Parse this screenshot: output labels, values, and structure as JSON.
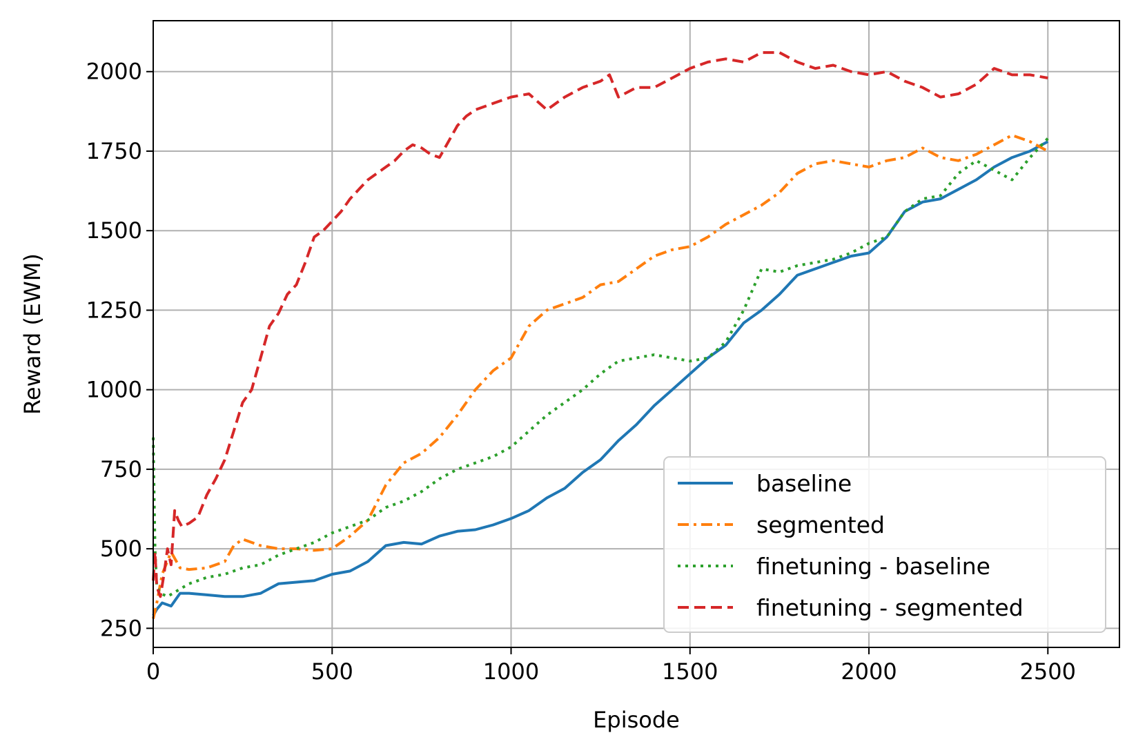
{
  "chart_data": {
    "type": "line",
    "title": "",
    "xlabel": "Episode",
    "ylabel": "Reward (EWM)",
    "xlim": [
      0,
      2700
    ],
    "ylim": [
      190,
      2160
    ],
    "xticks": [
      0,
      500,
      1000,
      1500,
      2000,
      2500
    ],
    "yticks": [
      250,
      500,
      750,
      1000,
      1250,
      1500,
      1750,
      2000
    ],
    "grid": true,
    "legend_position": "lower-right",
    "series": [
      {
        "name": "baseline",
        "color": "#1f77b4",
        "dash": "solid",
        "x": [
          0,
          10,
          25,
          50,
          75,
          100,
          150,
          200,
          250,
          300,
          350,
          400,
          450,
          500,
          550,
          600,
          650,
          700,
          750,
          800,
          850,
          900,
          950,
          1000,
          1050,
          1100,
          1150,
          1200,
          1250,
          1300,
          1350,
          1400,
          1450,
          1500,
          1550,
          1600,
          1650,
          1700,
          1750,
          1800,
          1850,
          1900,
          1950,
          2000,
          2050,
          2100,
          2150,
          2200,
          2250,
          2300,
          2350,
          2400,
          2450,
          2500
        ],
        "y": [
          290,
          310,
          330,
          320,
          360,
          360,
          355,
          350,
          350,
          360,
          390,
          395,
          400,
          420,
          430,
          460,
          510,
          520,
          515,
          540,
          555,
          560,
          575,
          595,
          620,
          660,
          690,
          740,
          780,
          840,
          890,
          950,
          1000,
          1050,
          1100,
          1140,
          1210,
          1250,
          1300,
          1360,
          1380,
          1400,
          1420,
          1430,
          1480,
          1560,
          1590,
          1600,
          1630,
          1660,
          1700,
          1730,
          1750,
          1780
        ]
      },
      {
        "name": "segmented",
        "color": "#ff7f0e",
        "dash": "dashdot",
        "x": [
          0,
          10,
          25,
          50,
          75,
          100,
          150,
          200,
          225,
          250,
          300,
          350,
          400,
          450,
          500,
          550,
          600,
          650,
          700,
          750,
          800,
          850,
          900,
          950,
          1000,
          1050,
          1100,
          1150,
          1200,
          1250,
          1300,
          1350,
          1400,
          1450,
          1500,
          1550,
          1600,
          1650,
          1700,
          1750,
          1800,
          1850,
          1900,
          1950,
          2000,
          2050,
          2100,
          2150,
          2200,
          2250,
          2300,
          2350,
          2400,
          2450,
          2500
        ],
        "y": [
          280,
          330,
          420,
          490,
          440,
          435,
          440,
          460,
          510,
          530,
          510,
          500,
          500,
          495,
          500,
          540,
          590,
          700,
          770,
          800,
          850,
          920,
          1000,
          1060,
          1100,
          1200,
          1250,
          1270,
          1290,
          1330,
          1340,
          1380,
          1420,
          1440,
          1450,
          1480,
          1520,
          1550,
          1580,
          1620,
          1680,
          1710,
          1720,
          1710,
          1700,
          1720,
          1730,
          1760,
          1730,
          1720,
          1740,
          1770,
          1800,
          1780,
          1750
        ]
      },
      {
        "name": "finetuning - baseline",
        "color": "#2ca02c",
        "dash": "dotted",
        "x": [
          0,
          5,
          10,
          20,
          40,
          70,
          100,
          150,
          200,
          250,
          300,
          350,
          400,
          450,
          500,
          550,
          600,
          650,
          700,
          750,
          800,
          850,
          900,
          950,
          1000,
          1050,
          1100,
          1150,
          1200,
          1250,
          1300,
          1350,
          1400,
          1450,
          1500,
          1550,
          1600,
          1650,
          1700,
          1750,
          1800,
          1850,
          1900,
          1950,
          2000,
          2050,
          2100,
          2150,
          2200,
          2250,
          2300,
          2350,
          2400,
          2450,
          2500
        ],
        "y": [
          850,
          500,
          380,
          360,
          350,
          370,
          390,
          410,
          420,
          440,
          450,
          480,
          500,
          520,
          550,
          570,
          590,
          630,
          650,
          680,
          720,
          750,
          770,
          790,
          820,
          870,
          920,
          960,
          1000,
          1050,
          1090,
          1100,
          1110,
          1100,
          1090,
          1100,
          1150,
          1250,
          1380,
          1370,
          1390,
          1400,
          1410,
          1430,
          1460,
          1480,
          1560,
          1600,
          1610,
          1680,
          1720,
          1690,
          1660,
          1730,
          1790
        ]
      },
      {
        "name": "finetuning - segmented",
        "color": "#d62728",
        "dash": "dashed",
        "x": [
          0,
          5,
          10,
          20,
          30,
          40,
          50,
          60,
          70,
          80,
          100,
          125,
          150,
          175,
          200,
          225,
          250,
          275,
          300,
          325,
          350,
          375,
          400,
          425,
          450,
          475,
          500,
          525,
          550,
          575,
          600,
          625,
          650,
          675,
          700,
          725,
          750,
          775,
          800,
          825,
          850,
          875,
          900,
          950,
          1000,
          1050,
          1100,
          1150,
          1200,
          1250,
          1275,
          1300,
          1350,
          1400,
          1450,
          1500,
          1550,
          1600,
          1650,
          1700,
          1750,
          1800,
          1850,
          1900,
          1950,
          2000,
          2050,
          2100,
          2150,
          2200,
          2250,
          2300,
          2350,
          2400,
          2450,
          2500
        ],
        "y": [
          400,
          490,
          380,
          350,
          420,
          500,
          450,
          620,
          590,
          570,
          580,
          600,
          670,
          720,
          780,
          870,
          960,
          1000,
          1100,
          1200,
          1240,
          1300,
          1330,
          1400,
          1480,
          1500,
          1530,
          1560,
          1600,
          1630,
          1660,
          1680,
          1700,
          1720,
          1750,
          1770,
          1760,
          1740,
          1730,
          1780,
          1830,
          1860,
          1880,
          1900,
          1920,
          1930,
          1880,
          1920,
          1950,
          1970,
          1990,
          1920,
          1950,
          1950,
          1980,
          2010,
          2030,
          2040,
          2030,
          2060,
          2060,
          2030,
          2010,
          2020,
          2000,
          1990,
          2000,
          1970,
          1950,
          1920,
          1930,
          1960,
          2010,
          1990,
          1990,
          1980
        ]
      }
    ]
  }
}
